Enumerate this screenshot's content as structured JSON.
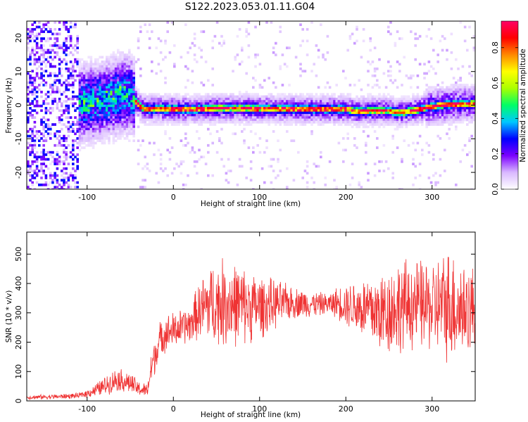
{
  "title": "S122.2023.053.01.11.G04",
  "chart_data": [
    {
      "type": "heatmap",
      "title": "S122.2023.053.01.11.G04",
      "xlabel": "Height of straight line (km)",
      "ylabel": "Frequency (Hz)",
      "xlim": [
        -170,
        350
      ],
      "ylim": [
        -25,
        25
      ],
      "x_ticks": [
        -100,
        0,
        100,
        200,
        300
      ],
      "x_tick_labels": [
        "-100",
        "0",
        "100",
        "200",
        "300"
      ],
      "y_ticks": [
        -20,
        -10,
        0,
        10,
        20
      ],
      "y_tick_labels": [
        "-20",
        "-10",
        "0",
        "10",
        "20"
      ],
      "colorbar": {
        "label": "Normalized spectral amplitude",
        "range": [
          0,
          0.95
        ],
        "ticks": [
          0.0,
          0.2,
          0.4,
          0.6,
          0.8
        ],
        "tick_labels": [
          "0.0",
          "0.2",
          "0.4",
          "0.6",
          "0.8"
        ],
        "colors": [
          "#ffffff",
          "#d9b8ff",
          "#7b00ff",
          "#0000ff",
          "#00c8ff",
          "#00ff66",
          "#aaff00",
          "#ffff00",
          "#ff8800",
          "#ff0000",
          "#ff0066"
        ]
      },
      "ridge": {
        "x": [
          -170,
          -120,
          -100,
          -80,
          -60,
          -50,
          -45,
          -40,
          -35,
          0,
          20,
          50,
          100,
          150,
          200,
          210,
          230,
          250,
          255,
          265,
          280,
          300,
          320,
          350
        ],
        "freq": [
          0,
          0.5,
          1.0,
          2.0,
          3.5,
          3.5,
          1.5,
          0,
          -0.8,
          -0.8,
          -1.0,
          -0.6,
          -0.7,
          -0.9,
          -0.9,
          -1.5,
          -1.3,
          -1.3,
          -1.8,
          -1.8,
          -1.2,
          0,
          0.6,
          0.8
        ]
      }
    },
    {
      "type": "line",
      "xlabel": "Height of straight line (km)",
      "ylabel": "SNR (10 * v/v)",
      "xlim": [
        -170,
        350
      ],
      "ylim": [
        0,
        575
      ],
      "x_ticks": [
        -100,
        0,
        100,
        200,
        300
      ],
      "x_tick_labels": [
        "-100",
        "0",
        "100",
        "200",
        "300"
      ],
      "y_ticks": [
        0,
        100,
        200,
        300,
        400,
        500
      ],
      "y_tick_labels": [
        "0",
        "100",
        "200",
        "300",
        "400",
        "500"
      ],
      "series": [
        {
          "color": "#ef3333",
          "x": [
            -170,
            -130,
            -110,
            -100,
            -80,
            -65,
            -50,
            -40,
            -30,
            -25,
            -20,
            -15,
            -10,
            0,
            10,
            20,
            25,
            40,
            60,
            80,
            100,
            120,
            140,
            160,
            180,
            190,
            200,
            220,
            240,
            260,
            280,
            300,
            320,
            340,
            350
          ],
          "mean": [
            12,
            15,
            18,
            25,
            50,
            75,
            60,
            40,
            35,
            120,
            170,
            210,
            230,
            240,
            250,
            260,
            290,
            330,
            335,
            325,
            320,
            330,
            335,
            330,
            330,
            335,
            330,
            315,
            300,
            320,
            330,
            320,
            330,
            310,
            320
          ],
          "amp": [
            8,
            10,
            10,
            15,
            35,
            45,
            40,
            30,
            25,
            70,
            70,
            70,
            70,
            70,
            70,
            70,
            90,
            150,
            170,
            150,
            120,
            90,
            60,
            50,
            40,
            60,
            80,
            120,
            160,
            180,
            170,
            170,
            220,
            180,
            160
          ]
        }
      ]
    }
  ]
}
